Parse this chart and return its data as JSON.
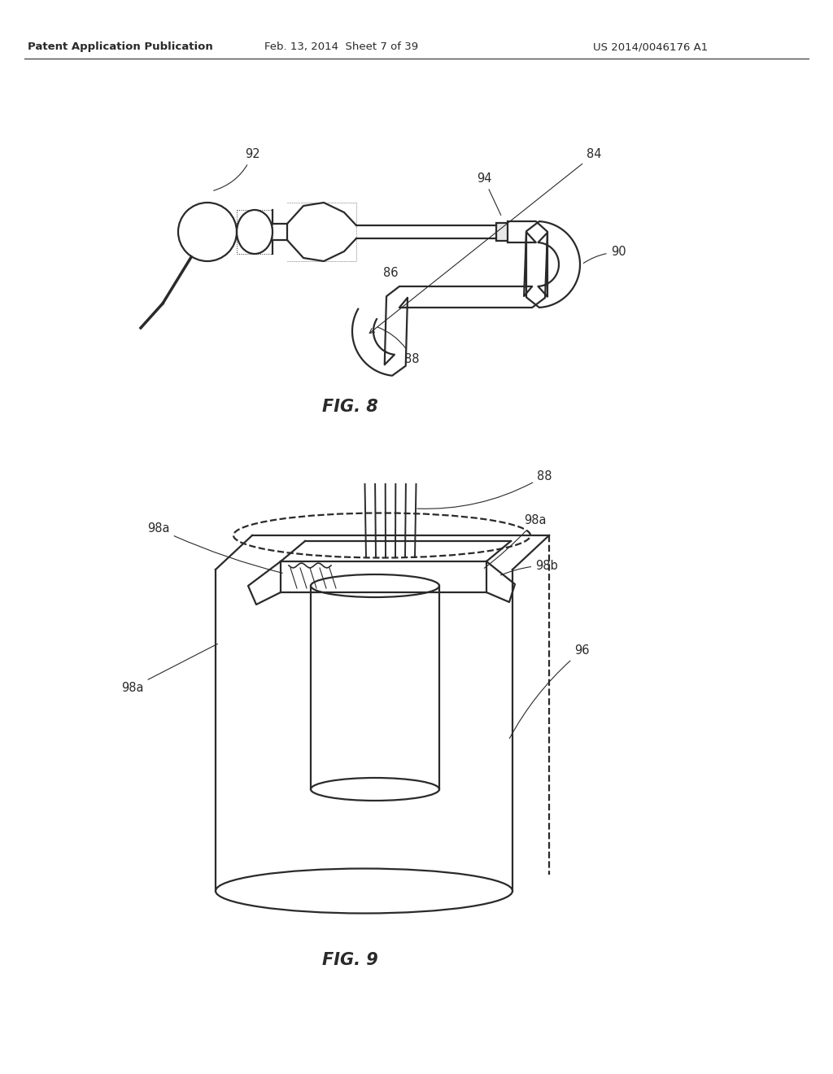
{
  "bg_color": "#ffffff",
  "line_color": "#2a2a2a",
  "header_left": "Patent Application Publication",
  "header_mid": "Feb. 13, 2014  Sheet 7 of 39",
  "header_right": "US 2014/0046176 A1",
  "fig8_label": "FIG. 8",
  "fig9_label": "FIG. 9"
}
